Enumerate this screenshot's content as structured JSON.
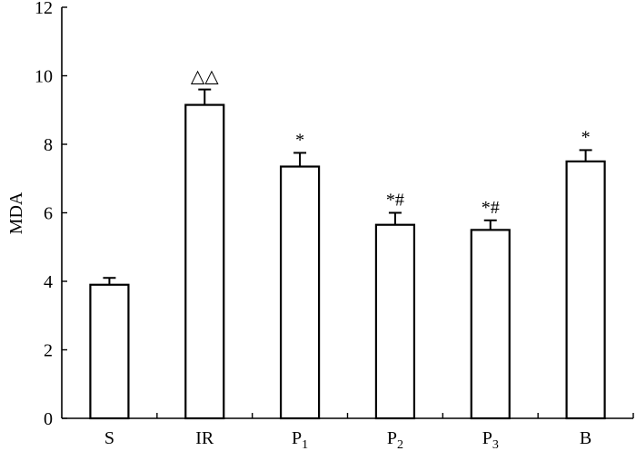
{
  "chart_data": {
    "type": "bar",
    "title": "",
    "xlabel": "",
    "ylabel": "MDA",
    "ylim": [
      0,
      12
    ],
    "yticks": [
      0,
      2,
      4,
      6,
      8,
      10,
      12
    ],
    "grid": false,
    "legend": "none",
    "bar_fill": "#ffffff",
    "bar_stroke": "#000000",
    "categories": [
      {
        "main": "S",
        "sub": ""
      },
      {
        "main": "IR",
        "sub": ""
      },
      {
        "main": "P",
        "sub": "1"
      },
      {
        "main": "P",
        "sub": "2"
      },
      {
        "main": "P",
        "sub": "3"
      },
      {
        "main": "B",
        "sub": ""
      }
    ],
    "values": [
      3.9,
      9.15,
      7.35,
      5.65,
      5.5,
      7.5
    ],
    "errors": [
      0.2,
      0.45,
      0.4,
      0.35,
      0.28,
      0.33
    ],
    "annotations": [
      "",
      "△△",
      "*",
      "*#",
      "*#",
      "*"
    ]
  }
}
